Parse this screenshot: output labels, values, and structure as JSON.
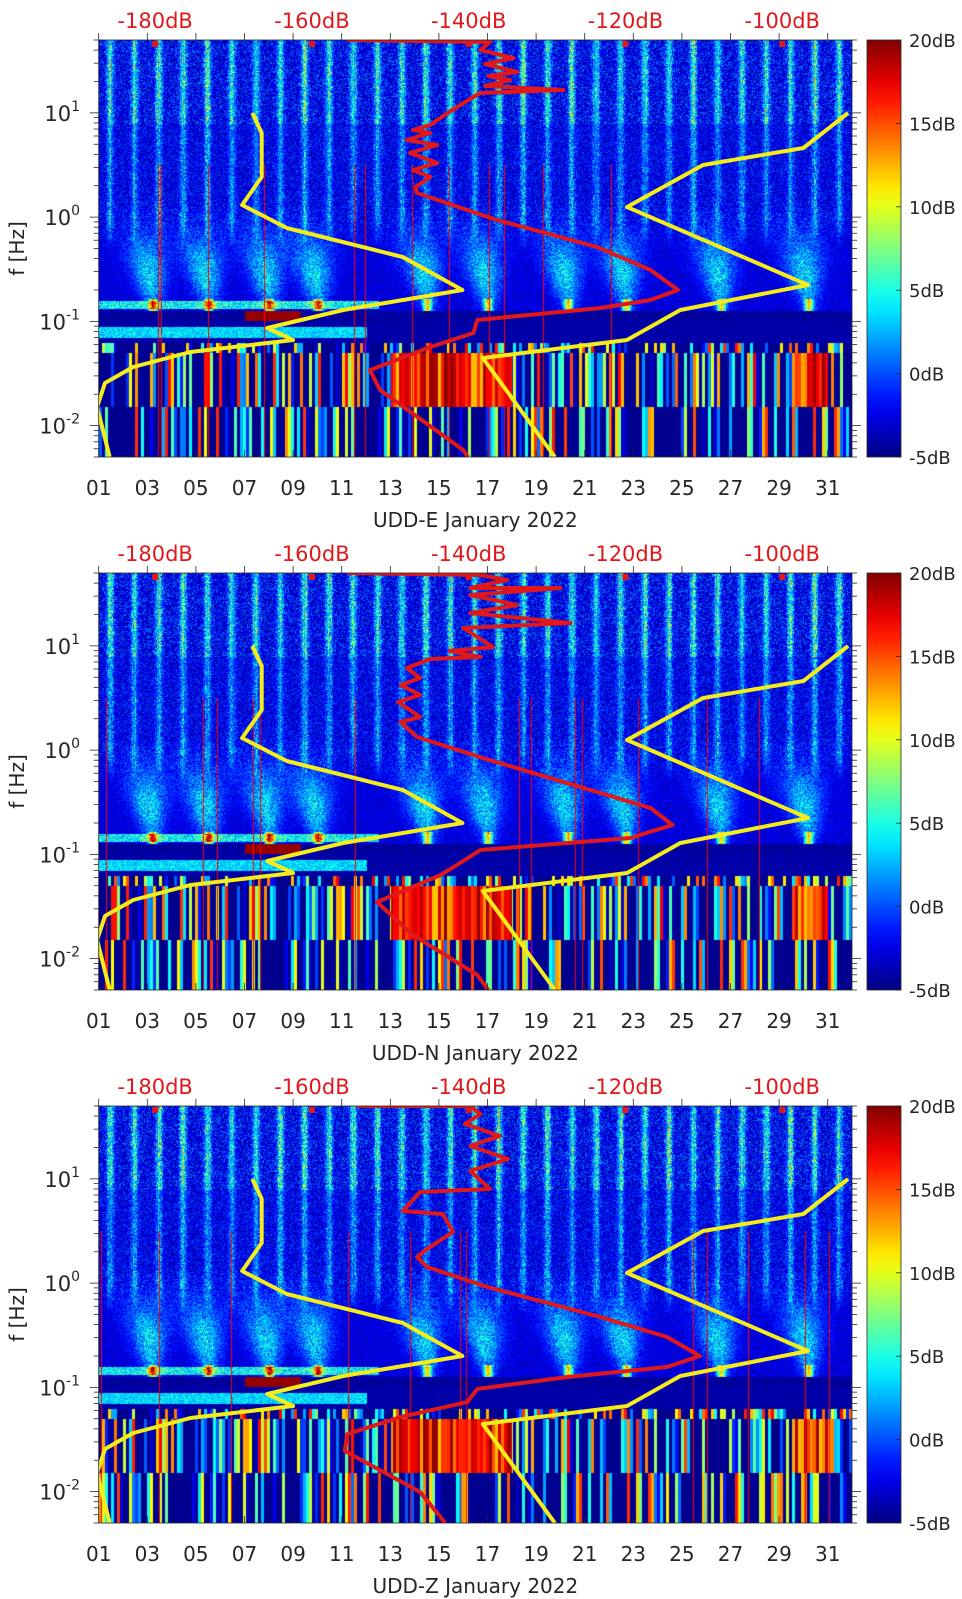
{
  "chart_data": [
    {
      "type": "heatmap",
      "xlabel": "UDD-E January 2022",
      "ylabel": "f [Hz]",
      "xlim": [
        1,
        32
      ],
      "ylim": [
        0.005,
        50
      ],
      "yscale": "log",
      "x_tick_labels": [
        "01",
        "03",
        "05",
        "07",
        "09",
        "11",
        "13",
        "15",
        "17",
        "19",
        "21",
        "23",
        "25",
        "27",
        "29",
        "31"
      ],
      "y_tick_labels": [
        {
          "base": "10",
          "exp": "1"
        },
        {
          "base": "10",
          "exp": "0"
        },
        {
          "base": "10",
          "exp": "-1"
        },
        {
          "base": "10",
          "exp": "-2"
        }
      ],
      "top_axis": {
        "labels": [
          "-180dB",
          "-160dB",
          "-140dB",
          "-120dB",
          "-100dB"
        ],
        "values": [
          -180,
          -160,
          -140,
          -120,
          -100
        ],
        "lim": [
          -187.2,
          -91.1
        ],
        "color": "#e0181c"
      },
      "colorbar": {
        "labels": [
          "20dB",
          "15dB",
          "10dB",
          "5dB",
          "0dB",
          "-5dB"
        ],
        "values": [
          20,
          15,
          10,
          5,
          0,
          -5
        ],
        "clim": [
          -5,
          20
        ],
        "colormap": "jet"
      },
      "lines": [
        {
          "color": "#f5ec1c",
          "points_db_hz": [
            [
              -185.8,
              -2.301
            ],
            [
              -187.4,
              -1.821
            ],
            [
              -186.4,
              -1.591
            ],
            [
              -182.8,
              -1.438
            ],
            [
              -175.5,
              -1.294
            ],
            [
              -162.4,
              -1.179
            ],
            [
              -165.7,
              -1.064
            ],
            [
              -156.0,
              -0.891
            ],
            [
              -140.8,
              -0.699
            ],
            [
              -148.4,
              -0.383
            ],
            [
              -163.2,
              -0.104
            ],
            [
              -168.9,
              0.116
            ],
            [
              -166.4,
              0.385
            ],
            [
              -166.4,
              0.807
            ],
            [
              -167.6,
              0.999
            ]
          ]
        },
        {
          "color": "#f5ec1c",
          "points_db_hz": [
            [
              -91.6,
              0.999
            ],
            [
              -97.3,
              0.663
            ],
            [
              -110.1,
              0.5
            ],
            [
              -119.8,
              0.097
            ],
            [
              -96.7,
              -0.651
            ],
            [
              -113.0,
              -0.891
            ],
            [
              -119.8,
              -1.179
            ],
            [
              -138.2,
              -1.351
            ],
            [
              -129.0,
              -2.301
            ]
          ]
        },
        {
          "color": "#e0181c",
          "points_db_hz": [
            [
              -155.5,
              1.699
            ],
            [
              -137.3,
              1.68
            ],
            [
              -138.5,
              1.603
            ],
            [
              -134.3,
              1.526
            ],
            [
              -137.9,
              1.469
            ],
            [
              -133.8,
              1.392
            ],
            [
              -137.5,
              1.354
            ],
            [
              -134.7,
              1.315
            ],
            [
              -137.9,
              1.258
            ],
            [
              -127.9,
              1.219
            ],
            [
              -138.5,
              1.191
            ],
            [
              -139.4,
              1.152
            ],
            [
              -142.7,
              0.999
            ],
            [
              -144.9,
              0.884
            ],
            [
              -147.1,
              0.836
            ],
            [
              -144.9,
              0.807
            ],
            [
              -147.9,
              0.74
            ],
            [
              -144.0,
              0.692
            ],
            [
              -147.5,
              0.615
            ],
            [
              -144.0,
              0.519
            ],
            [
              -147.1,
              0.452
            ],
            [
              -144.9,
              0.385
            ],
            [
              -146.8,
              0.289
            ],
            [
              -146.6,
              0.231
            ],
            [
              -136.4,
              -0.028
            ],
            [
              -123.6,
              -0.287
            ],
            [
              -116.8,
              -0.507
            ],
            [
              -113.3,
              -0.699
            ],
            [
              -116.8,
              -0.795
            ],
            [
              -123.2,
              -0.872
            ],
            [
              -138.9,
              -0.987
            ],
            [
              -139.4,
              -1.112
            ],
            [
              -144.9,
              -1.246
            ],
            [
              -152.6,
              -1.467
            ],
            [
              -151.3,
              -1.658
            ],
            [
              -140.7,
              -2.234
            ],
            [
              -140.1,
              -2.301
            ]
          ]
        }
      ]
    },
    {
      "type": "heatmap",
      "xlabel": "UDD-N January 2022",
      "ylabel": "f [Hz]",
      "xlim": [
        1,
        32
      ],
      "ylim": [
        0.005,
        50
      ],
      "yscale": "log",
      "x_tick_labels": [
        "01",
        "03",
        "05",
        "07",
        "09",
        "11",
        "13",
        "15",
        "17",
        "19",
        "21",
        "23",
        "25",
        "27",
        "29",
        "31"
      ],
      "y_tick_labels": [
        {
          "base": "10",
          "exp": "1"
        },
        {
          "base": "10",
          "exp": "0"
        },
        {
          "base": "10",
          "exp": "-1"
        },
        {
          "base": "10",
          "exp": "-2"
        }
      ],
      "top_axis": {
        "labels": [
          "-180dB",
          "-160dB",
          "-140dB",
          "-120dB",
          "-100dB"
        ],
        "values": [
          -180,
          -160,
          -140,
          -120,
          -100
        ],
        "lim": [
          -187.2,
          -91.1
        ],
        "color": "#e0181c"
      },
      "colorbar": {
        "labels": [
          "20dB",
          "15dB",
          "10dB",
          "5dB",
          "0dB",
          "-5dB"
        ],
        "values": [
          20,
          15,
          10,
          5,
          0,
          -5
        ],
        "clim": [
          -5,
          20
        ],
        "colormap": "jet"
      },
      "lines": [
        {
          "color": "#f5ec1c",
          "points_db_hz": [
            [
              -185.8,
              -2.301
            ],
            [
              -187.4,
              -1.821
            ],
            [
              -186.4,
              -1.591
            ],
            [
              -182.8,
              -1.438
            ],
            [
              -175.5,
              -1.294
            ],
            [
              -162.4,
              -1.179
            ],
            [
              -165.7,
              -1.064
            ],
            [
              -156.0,
              -0.891
            ],
            [
              -140.8,
              -0.699
            ],
            [
              -148.4,
              -0.383
            ],
            [
              -163.2,
              -0.104
            ],
            [
              -168.9,
              0.116
            ],
            [
              -166.4,
              0.385
            ],
            [
              -166.4,
              0.807
            ],
            [
              -167.6,
              0.999
            ]
          ]
        },
        {
          "color": "#f5ec1c",
          "points_db_hz": [
            [
              -91.6,
              0.999
            ],
            [
              -97.3,
              0.663
            ],
            [
              -110.1,
              0.5
            ],
            [
              -119.8,
              0.097
            ],
            [
              -96.7,
              -0.651
            ],
            [
              -113.0,
              -0.891
            ],
            [
              -119.8,
              -1.179
            ],
            [
              -138.2,
              -1.351
            ],
            [
              -129.0,
              -2.301
            ]
          ]
        },
        {
          "color": "#e0181c",
          "points_db_hz": [
            [
              -155.5,
              1.699
            ],
            [
              -138.5,
              1.68
            ],
            [
              -135.1,
              1.632
            ],
            [
              -139.8,
              1.555
            ],
            [
              -128.3,
              1.555
            ],
            [
              -139.8,
              1.488
            ],
            [
              -133.8,
              1.392
            ],
            [
              -139.8,
              1.315
            ],
            [
              -127.0,
              1.219
            ],
            [
              -140.7,
              1.171
            ],
            [
              -136.9,
              0.989
            ],
            [
              -142.4,
              0.951
            ],
            [
              -138.5,
              0.893
            ],
            [
              -144.9,
              0.874
            ],
            [
              -147.9,
              0.788
            ],
            [
              -146.2,
              0.692
            ],
            [
              -148.7,
              0.625
            ],
            [
              -146.2,
              0.529
            ],
            [
              -149.0,
              0.462
            ],
            [
              -146.2,
              0.318
            ],
            [
              -148.7,
              0.27
            ],
            [
              -146.6,
              0.126
            ],
            [
              -138.2,
              -0.076
            ],
            [
              -123.6,
              -0.402
            ],
            [
              -116.8,
              -0.555
            ],
            [
              -114.0,
              -0.718
            ],
            [
              -119.4,
              -0.843
            ],
            [
              -138.5,
              -0.958
            ],
            [
              -141.5,
              -1.102
            ],
            [
              -143.6,
              -1.198
            ],
            [
              -151.7,
              -1.458
            ],
            [
              -147.1,
              -1.774
            ],
            [
              -138.9,
              -2.157
            ],
            [
              -137.5,
              -2.301
            ]
          ]
        }
      ]
    },
    {
      "type": "heatmap",
      "xlabel": "UDD-Z January 2022",
      "ylabel": "f [Hz]",
      "xlim": [
        1,
        32
      ],
      "ylim": [
        0.005,
        50
      ],
      "yscale": "log",
      "x_tick_labels": [
        "01",
        "03",
        "05",
        "07",
        "09",
        "11",
        "13",
        "15",
        "17",
        "19",
        "21",
        "23",
        "25",
        "27",
        "29",
        "31"
      ],
      "y_tick_labels": [
        {
          "base": "10",
          "exp": "1"
        },
        {
          "base": "10",
          "exp": "0"
        },
        {
          "base": "10",
          "exp": "-1"
        },
        {
          "base": "10",
          "exp": "-2"
        }
      ],
      "top_axis": {
        "labels": [
          "-180dB",
          "-160dB",
          "-140dB",
          "-120dB",
          "-100dB"
        ],
        "values": [
          -180,
          -160,
          -140,
          -120,
          -100
        ],
        "lim": [
          -187.2,
          -91.1
        ],
        "color": "#e0181c"
      },
      "colorbar": {
        "labels": [
          "20dB",
          "15dB",
          "10dB",
          "5dB",
          "0dB",
          "-5dB"
        ],
        "values": [
          20,
          15,
          10,
          5,
          0,
          -5
        ],
        "clim": [
          -5,
          20
        ],
        "colormap": "jet"
      },
      "lines": [
        {
          "color": "#f5ec1c",
          "points_db_hz": [
            [
              -185.8,
              -2.301
            ],
            [
              -187.4,
              -1.821
            ],
            [
              -186.4,
              -1.591
            ],
            [
              -182.8,
              -1.438
            ],
            [
              -175.5,
              -1.294
            ],
            [
              -162.4,
              -1.179
            ],
            [
              -165.7,
              -1.064
            ],
            [
              -156.0,
              -0.891
            ],
            [
              -140.8,
              -0.699
            ],
            [
              -148.4,
              -0.383
            ],
            [
              -163.2,
              -0.104
            ],
            [
              -168.9,
              0.116
            ],
            [
              -166.4,
              0.385
            ],
            [
              -166.4,
              0.807
            ],
            [
              -167.6,
              0.999
            ]
          ]
        },
        {
          "color": "#f5ec1c",
          "points_db_hz": [
            [
              -91.6,
              0.999
            ],
            [
              -97.3,
              0.663
            ],
            [
              -110.1,
              0.5
            ],
            [
              -119.8,
              0.097
            ],
            [
              -96.7,
              -0.651
            ],
            [
              -113.0,
              -0.891
            ],
            [
              -119.8,
              -1.179
            ],
            [
              -138.2,
              -1.351
            ],
            [
              -129.0,
              -2.301
            ]
          ]
        },
        {
          "color": "#e0181c",
          "points_db_hz": [
            [
              -154.2,
              1.699
            ],
            [
              -139.8,
              1.699
            ],
            [
              -138.5,
              1.622
            ],
            [
              -140.5,
              1.526
            ],
            [
              -136.0,
              1.411
            ],
            [
              -139.8,
              1.315
            ],
            [
              -135.0,
              1.191
            ],
            [
              -139.8,
              1.075
            ],
            [
              -137.3,
              0.903
            ],
            [
              -146.2,
              0.874
            ],
            [
              -148.4,
              0.692
            ],
            [
              -143.3,
              0.663
            ],
            [
              -142.7,
              0.586
            ],
            [
              -142.0,
              0.49
            ],
            [
              -145.3,
              0.327
            ],
            [
              -146.6,
              0.251
            ],
            [
              -145.3,
              0.155
            ],
            [
              -137.6,
              -0.037
            ],
            [
              -123.2,
              -0.325
            ],
            [
              -114.7,
              -0.517
            ],
            [
              -110.5,
              -0.699
            ],
            [
              -114.7,
              -0.805
            ],
            [
              -127.4,
              -0.901
            ],
            [
              -138.9,
              -1.016
            ],
            [
              -140.2,
              -1.141
            ],
            [
              -148.7,
              -1.285
            ],
            [
              -155.5,
              -1.448
            ],
            [
              -155.8,
              -1.61
            ],
            [
              -146.2,
              -2.004
            ],
            [
              -143.0,
              -2.301
            ]
          ]
        }
      ]
    }
  ]
}
